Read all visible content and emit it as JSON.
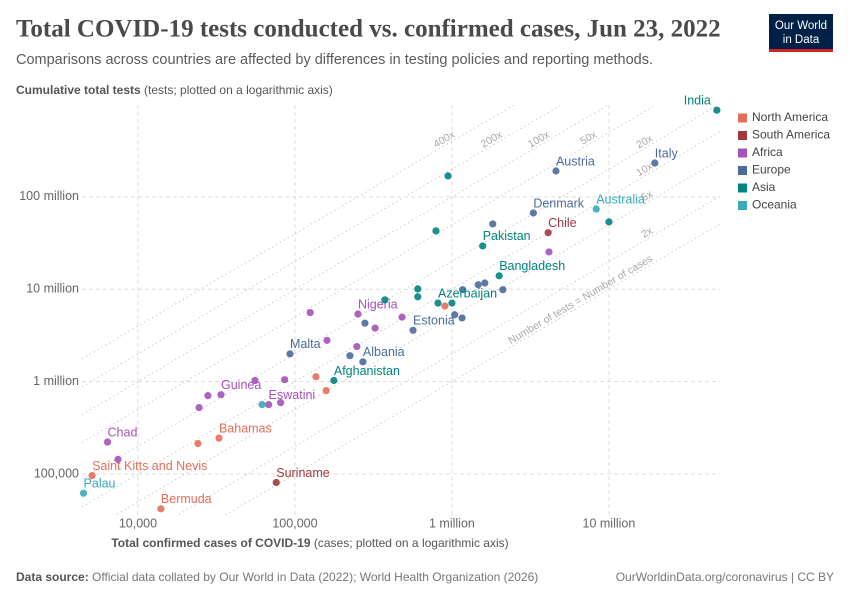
{
  "chart_data": {
    "type": "scatter",
    "title": "Total COVID-19 tests conducted vs. confirmed cases, Jun 23, 2022",
    "subtitle": "Comparisons across countries are affected by differences in testing policies and reporting methods.",
    "y_label": {
      "bold": "Cumulative total tests",
      "rest": "(tests; plotted on a logarithmic axis)"
    },
    "x_label": {
      "bold": "Total confirmed cases of COVID-19",
      "rest": "(cases; plotted on a logarithmic axis)"
    },
    "log_x": true,
    "log_y": true,
    "grid": true,
    "xlim": [
      4400,
      51000000
    ],
    "ylim": [
      36000,
      990000000
    ],
    "xticks": [
      {
        "value": 10000,
        "label": "10,000"
      },
      {
        "value": 100000,
        "label": "100,000"
      },
      {
        "value": 1000000,
        "label": "1 million"
      },
      {
        "value": 10000000,
        "label": "10 million"
      }
    ],
    "yticks": [
      {
        "value": 100000,
        "label": "100,000"
      },
      {
        "value": 1000000,
        "label": "1 million"
      },
      {
        "value": 10000000,
        "label": "10 million"
      },
      {
        "value": 100000000,
        "label": "100 million"
      }
    ],
    "ratio_lines": [
      {
        "value": 400,
        "label": "400x"
      },
      {
        "value": 200,
        "label": "200x"
      },
      {
        "value": 100,
        "label": "100x"
      },
      {
        "value": 50,
        "label": "50x"
      },
      {
        "value": 20,
        "label": "20x"
      },
      {
        "value": 10,
        "label": "10x"
      },
      {
        "value": 5,
        "label": "5x"
      },
      {
        "value": 2,
        "label": "2x"
      },
      {
        "value": 1,
        "label": "Number of tests = Number of cases"
      }
    ],
    "legend_position": "top-right",
    "series": [
      {
        "name": "North America",
        "color": "#e56e5a",
        "x": [
          32800,
          5100,
          14000,
          902000,
          136000,
          158000,
          24100
        ],
        "values": [
          245000,
          96000,
          42000,
          6600000,
          1130000,
          800000,
          214000
        ],
        "labels": [
          "Bahamas",
          "Saint Kitts and Nevis",
          "Bermuda",
          null,
          null,
          null,
          null
        ]
      },
      {
        "name": "South America",
        "color": "#a2393c",
        "x": [
          4100000,
          76000
        ],
        "values": [
          41000000,
          81000
        ],
        "labels": [
          "Chile",
          "Suriname"
        ]
      },
      {
        "name": "Africa",
        "color": "#a652ba",
        "x": [
          252000,
          33800,
          68000,
          6400,
          125000,
          324000,
          481000,
          160000,
          248000,
          55600,
          86000,
          27900,
          24500,
          81000,
          4150000,
          7460
        ],
        "values": [
          5400000,
          723000,
          564000,
          222000,
          5600000,
          3800000,
          5000000,
          2800000,
          2400000,
          1030000,
          1050000,
          706000,
          524000,
          593000,
          25400000,
          144000
        ],
        "labels": [
          "Nigeria",
          "Guinea",
          "Eswatini",
          "Chad",
          null,
          null,
          null,
          null,
          null,
          null,
          null,
          null,
          null,
          null,
          null,
          null
        ]
      },
      {
        "name": "Europe",
        "color": "#4c6a9c",
        "x": [
          19600000,
          4600000,
          3300000,
          565000,
          93000,
          271000,
          1820000,
          1170000,
          1620000,
          1470000,
          2110000,
          1040000,
          1160000,
          279000,
          224000
        ],
        "values": [
          233000000,
          191000000,
          67000000,
          3600000,
          2000000,
          1640000,
          51000000,
          9900000,
          11700000,
          11200000,
          9900000,
          5300000,
          4900000,
          4300000,
          1910000
        ],
        "labels": [
          "Italy",
          "Austria",
          "Denmark",
          "Estonia",
          "Malta",
          "Albania",
          null,
          null,
          null,
          null,
          null,
          null,
          null,
          null,
          null
        ]
      },
      {
        "name": "Asia",
        "color": "#00847e",
        "x": [
          48700000,
          1570000,
          2000000,
          815000,
          177000,
          944000,
          791000,
          606000,
          606000,
          374000,
          10000000,
          1000000
        ],
        "values": [
          870000000,
          29500000,
          14000000,
          7100000,
          1030000,
          169000000,
          42900000,
          10100000,
          8300000,
          7700000,
          53700000,
          7100000
        ],
        "labels": [
          "India",
          "Pakistan",
          "Bangladesh",
          "Azerbaijan",
          "Afghanistan",
          null,
          null,
          null,
          null,
          null,
          null,
          null
        ]
      },
      {
        "name": "Oceania",
        "color": "#38aaba",
        "x": [
          8300000,
          4500,
          61700
        ],
        "values": [
          74000000,
          62000,
          564000
        ],
        "labels": [
          "Australia",
          "Palau",
          null
        ]
      }
    ]
  },
  "logo": {
    "line1": "Our World",
    "line2": "in Data"
  },
  "source": {
    "bold": "Data source:",
    "text": "Official data collated by Our World in Data (2022); World Health Organization (2026)"
  },
  "license": "OurWorldinData.org/coronavirus | CC BY"
}
